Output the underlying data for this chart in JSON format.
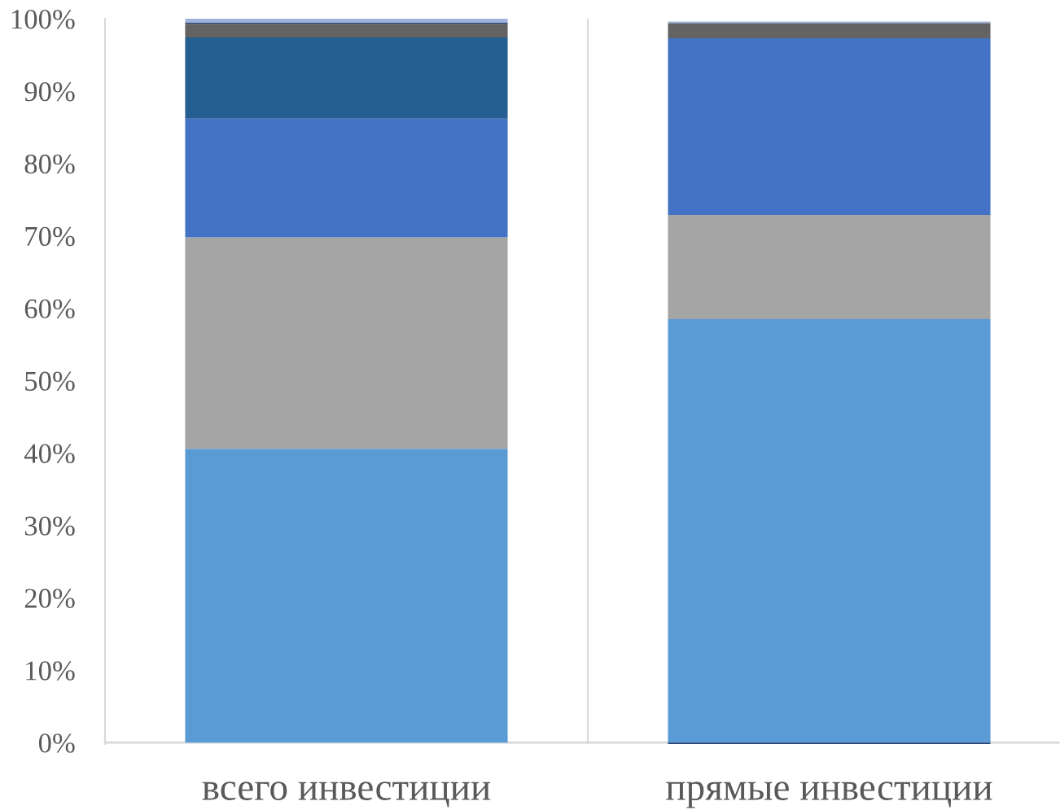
{
  "chart_data": {
    "type": "bar",
    "stacked": true,
    "categories": [
      "всего инвестиции",
      "прямые инвестиции"
    ],
    "series": [
      {
        "color": "#5b9bd5",
        "values": [
          40.6,
          58.5
        ]
      },
      {
        "color": "#a5a5a5",
        "values": [
          29.2,
          14.4
        ]
      },
      {
        "color": "#4472c4",
        "values": [
          16.4,
          24.4
        ]
      },
      {
        "color": "#255e91",
        "values": [
          11.2,
          null
        ]
      },
      {
        "color": "#636363",
        "values": [
          1.9,
          2.1
        ]
      },
      {
        "color": "#264478",
        "values": [
          0.2,
          -0.2
        ]
      },
      {
        "color": "#9eb4dc",
        "values": [
          0.5,
          0.2
        ]
      }
    ],
    "ylim": [
      -0.2,
      100
    ],
    "yticks": [
      {
        "value": 0,
        "label": "0%"
      },
      {
        "value": 10,
        "label": "10%"
      },
      {
        "value": 20,
        "label": "20%"
      },
      {
        "value": 30,
        "label": "30%"
      },
      {
        "value": 40,
        "label": "40%"
      },
      {
        "value": 50,
        "label": "50%"
      },
      {
        "value": 60,
        "label": "60%"
      },
      {
        "value": 70,
        "label": "70%"
      },
      {
        "value": 80,
        "label": "80%"
      },
      {
        "value": 90,
        "label": "90%"
      },
      {
        "value": 100,
        "label": "100%"
      }
    ],
    "grid": "x"
  }
}
